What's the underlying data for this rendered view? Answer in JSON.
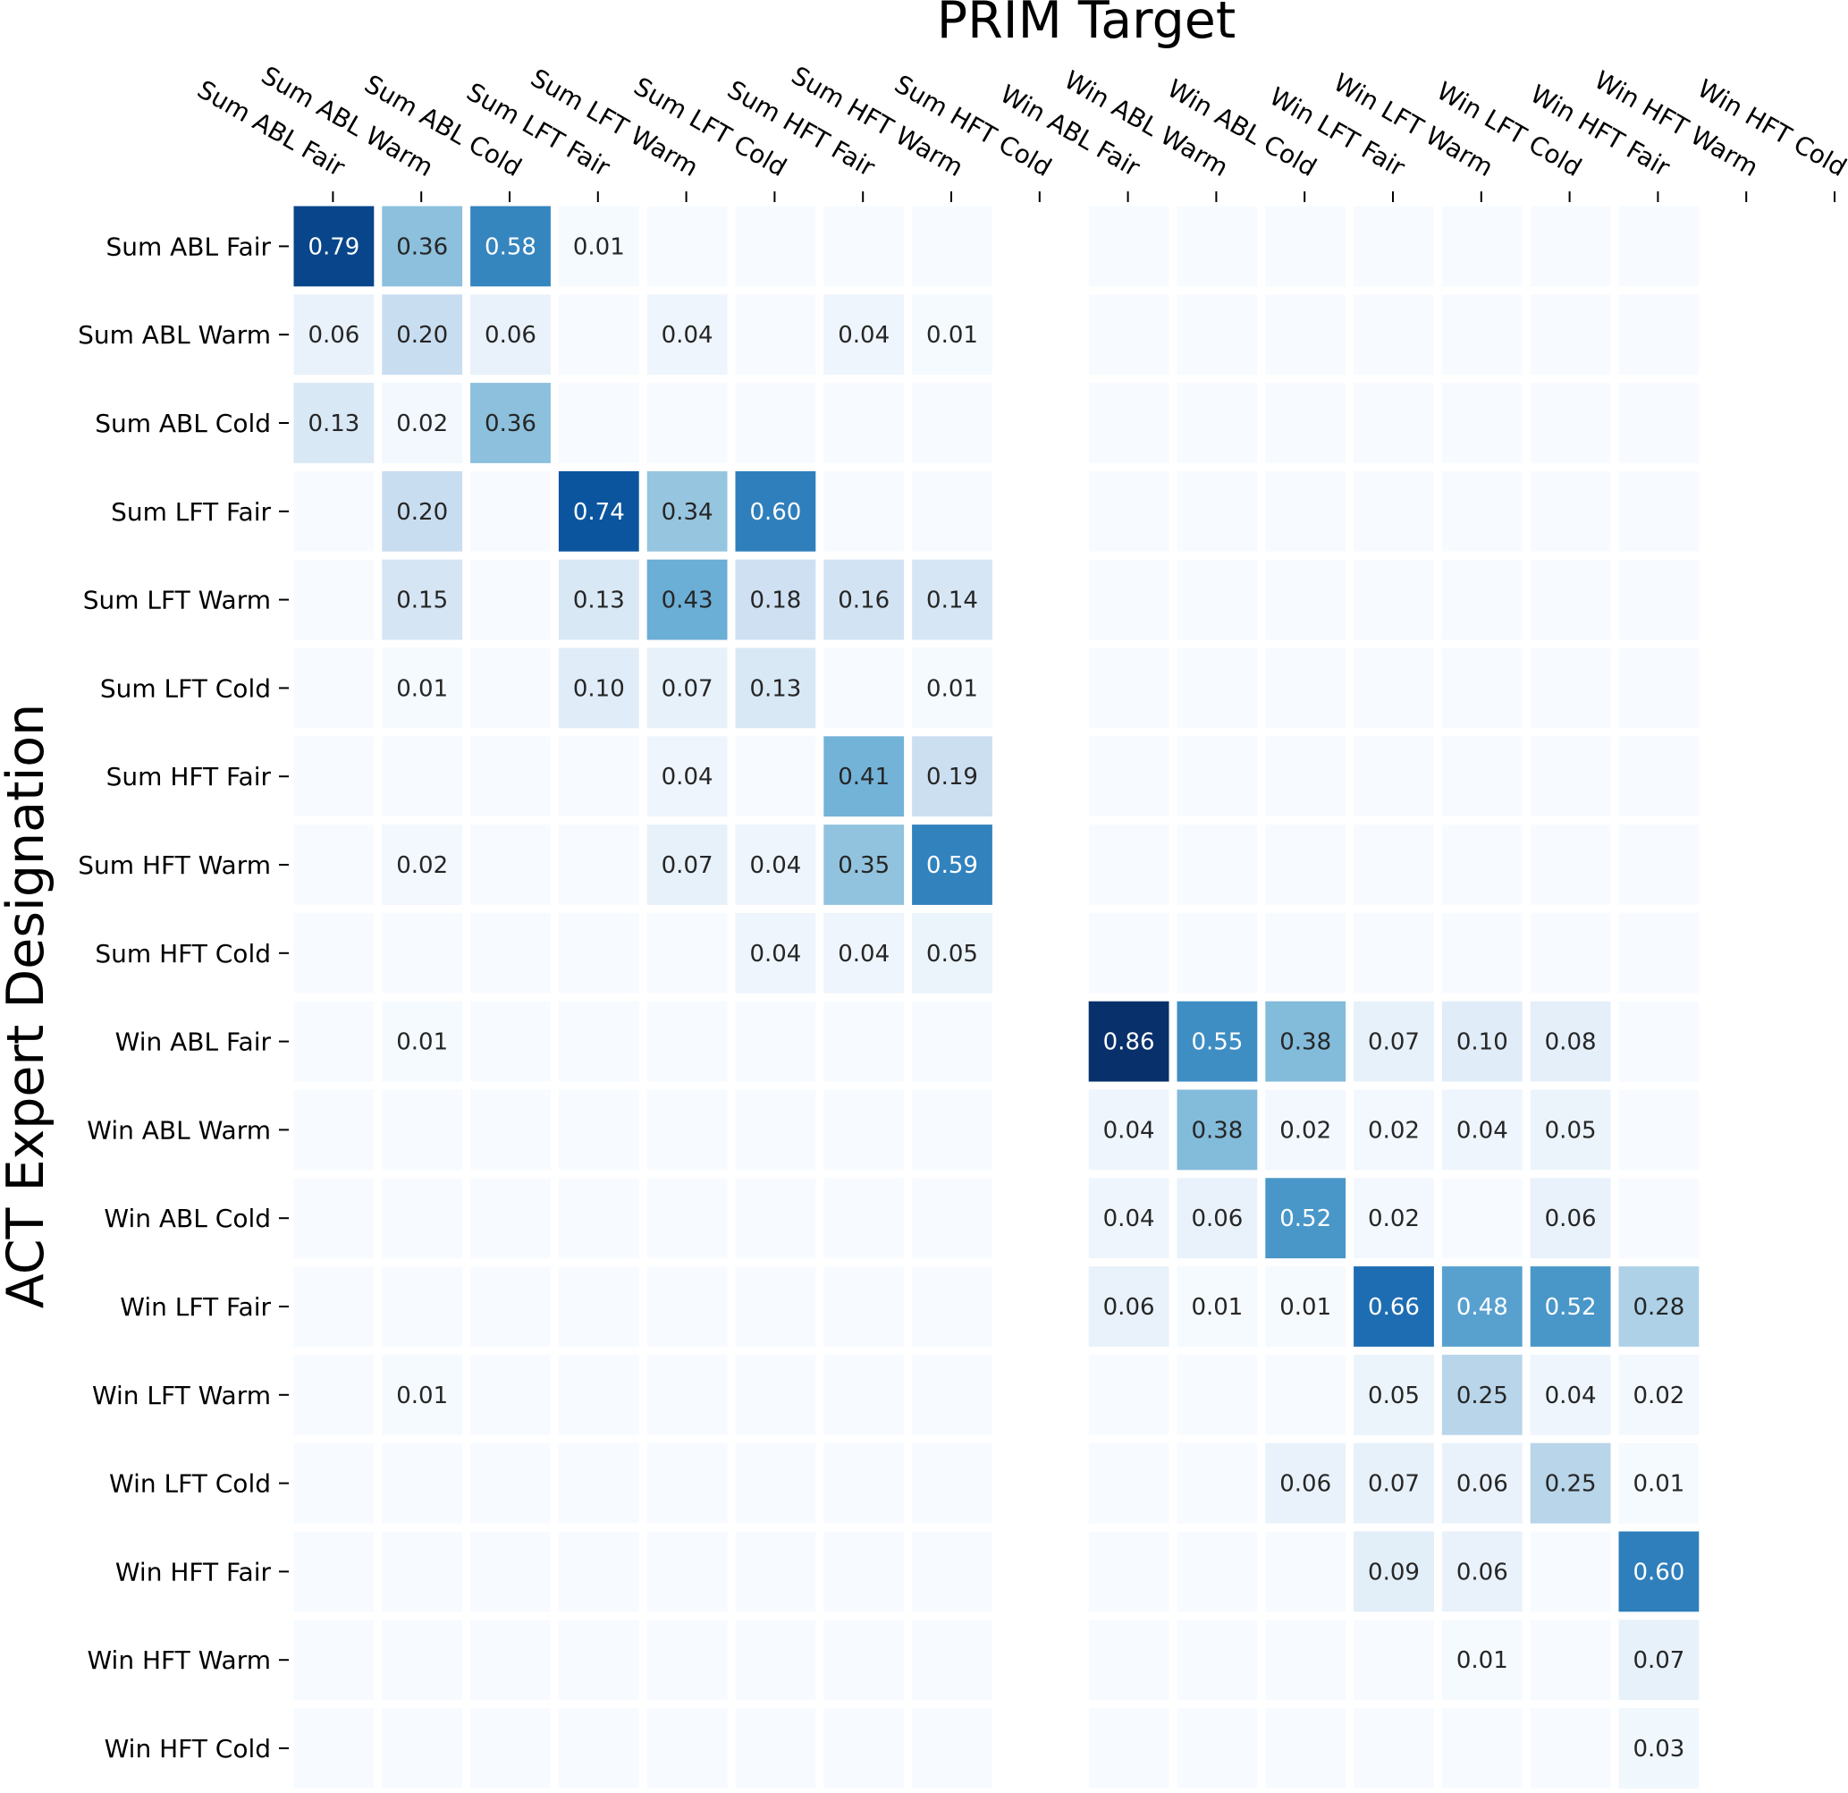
{
  "chart_data": {
    "type": "heatmap",
    "title": "PRIM Target",
    "xlabel": "PRIM Target",
    "ylabel": "ACT Expert Designation",
    "x_categories": [
      "Sum ABL Fair",
      "Sum ABL Warm",
      "Sum ABL Cold",
      "Sum LFT Fair",
      "Sum LFT Warm",
      "Sum LFT Cold",
      "Sum HFT Fair",
      "Sum HFT Warm",
      "Sum HFT Cold",
      "Win ABL Fair",
      "Win ABL Warm",
      "Win ABL Cold",
      "Win LFT Fair",
      "Win LFT Warm",
      "Win LFT Cold",
      "Win HFT Fair",
      "Win HFT Warm",
      "Win HFT Cold"
    ],
    "y_categories": [
      "Sum ABL Fair",
      "Sum ABL Warm",
      "Sum ABL Cold",
      "Sum LFT Fair",
      "Sum LFT Warm",
      "Sum LFT Cold",
      "Sum HFT Fair",
      "Sum HFT Warm",
      "Sum HFT Cold",
      "Win ABL Fair",
      "Win ABL Warm",
      "Win ABL Cold",
      "Win LFT Fair",
      "Win LFT Warm",
      "Win LFT Cold",
      "Win HFT Fair",
      "Win HFT Warm",
      "Win HFT Cold"
    ],
    "values": [
      [
        0.79,
        0.36,
        0.58,
        0.01,
        null,
        null,
        null,
        null,
        null,
        null,
        null,
        null,
        null,
        null,
        null,
        null,
        null,
        null
      ],
      [
        0.06,
        0.2,
        0.06,
        null,
        0.04,
        null,
        0.04,
        0.01,
        null,
        null,
        null,
        null,
        null,
        null,
        null,
        null,
        null,
        null
      ],
      [
        0.13,
        0.02,
        0.36,
        null,
        null,
        null,
        null,
        null,
        null,
        null,
        null,
        null,
        null,
        null,
        null,
        null,
        null,
        null
      ],
      [
        null,
        0.2,
        null,
        0.74,
        0.34,
        0.6,
        null,
        null,
        null,
        null,
        null,
        null,
        null,
        null,
        null,
        null,
        null,
        null
      ],
      [
        null,
        0.15,
        null,
        0.13,
        0.43,
        0.18,
        0.16,
        0.14,
        null,
        null,
        null,
        null,
        null,
        null,
        null,
        null,
        null,
        null
      ],
      [
        null,
        0.01,
        null,
        0.1,
        0.07,
        0.13,
        null,
        0.01,
        null,
        null,
        null,
        null,
        null,
        null,
        null,
        null,
        null,
        null
      ],
      [
        null,
        null,
        null,
        null,
        0.04,
        null,
        0.41,
        0.19,
        null,
        null,
        null,
        null,
        null,
        null,
        null,
        null,
        null,
        null
      ],
      [
        null,
        0.02,
        null,
        null,
        0.07,
        0.04,
        0.35,
        0.59,
        null,
        null,
        null,
        null,
        null,
        null,
        null,
        null,
        null,
        null
      ],
      [
        null,
        null,
        null,
        null,
        null,
        0.04,
        0.04,
        0.05,
        null,
        null,
        null,
        null,
        null,
        null,
        null,
        null,
        null,
        null
      ],
      [
        null,
        0.01,
        null,
        null,
        null,
        null,
        null,
        null,
        null,
        0.86,
        0.55,
        0.38,
        0.07,
        0.1,
        0.08,
        null,
        null,
        null
      ],
      [
        null,
        null,
        null,
        null,
        null,
        null,
        null,
        null,
        null,
        0.04,
        0.38,
        0.02,
        0.02,
        0.04,
        0.05,
        null,
        null,
        null
      ],
      [
        null,
        null,
        null,
        null,
        null,
        null,
        null,
        null,
        null,
        0.04,
        0.06,
        0.52,
        0.02,
        null,
        0.06,
        null,
        null,
        null
      ],
      [
        null,
        null,
        null,
        null,
        null,
        null,
        null,
        null,
        null,
        0.06,
        0.01,
        0.01,
        0.66,
        0.48,
        0.52,
        0.28,
        null,
        null
      ],
      [
        null,
        0.01,
        null,
        null,
        null,
        null,
        null,
        null,
        null,
        null,
        null,
        null,
        0.05,
        0.25,
        0.04,
        0.02,
        null,
        null
      ],
      [
        null,
        null,
        null,
        null,
        null,
        null,
        null,
        null,
        null,
        null,
        null,
        0.06,
        0.07,
        0.06,
        0.25,
        0.01,
        null,
        null
      ],
      [
        null,
        null,
        null,
        null,
        null,
        null,
        null,
        null,
        null,
        null,
        null,
        null,
        0.09,
        0.06,
        null,
        0.6,
        null,
        null
      ],
      [
        null,
        null,
        null,
        null,
        null,
        null,
        null,
        null,
        null,
        null,
        null,
        null,
        null,
        0.01,
        null,
        0.07,
        null,
        null
      ],
      [
        null,
        null,
        null,
        null,
        null,
        null,
        null,
        null,
        null,
        null,
        null,
        null,
        null,
        null,
        null,
        0.03,
        null,
        null
      ]
    ],
    "empty_cell_color": "#f7fbff",
    "hidden_columns": [
      "Sum HFT Cold",
      "Win HFT Warm",
      "Win HFT Cold"
    ],
    "colormap": "Blues",
    "value_range": [
      0,
      0.86
    ],
    "grid": false,
    "legend": "none"
  }
}
